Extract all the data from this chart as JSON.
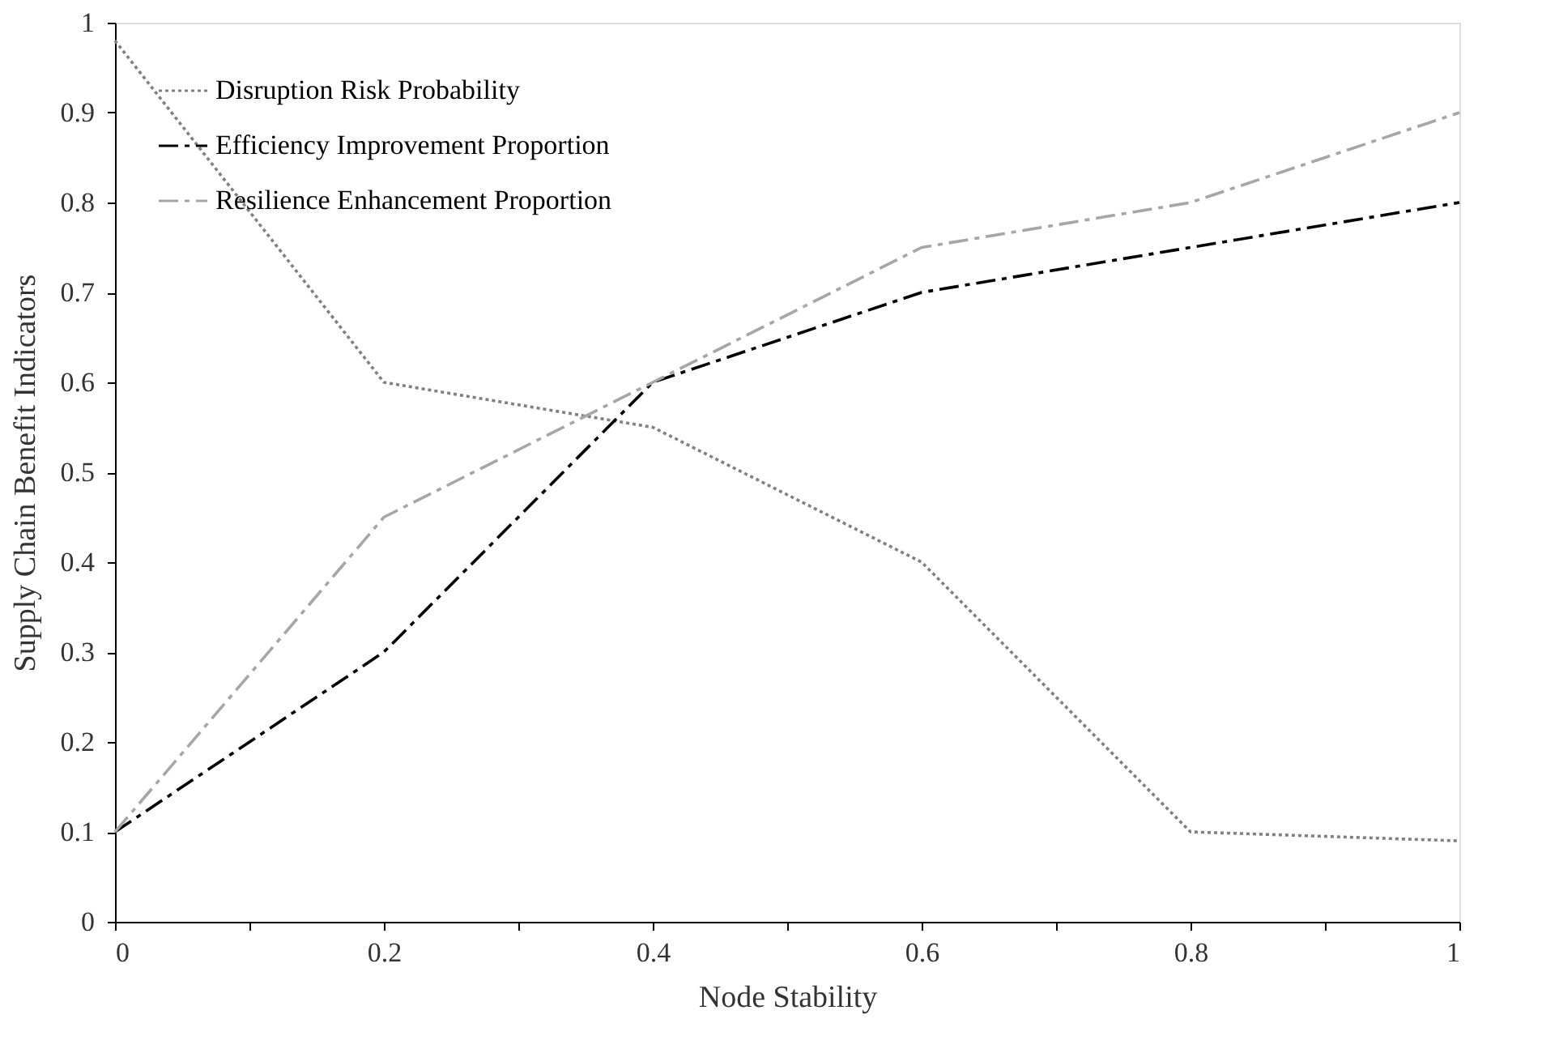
{
  "chart_data": {
    "type": "line",
    "xlabel": "Node Stability",
    "ylabel": "Supply Chain Benefit Indicators",
    "x": [
      0,
      0.2,
      0.4,
      0.6,
      0.8,
      1
    ],
    "series": [
      {
        "name": "Disruption Risk Probability",
        "color": "#808080",
        "line_style": "dotted",
        "values": [
          0.98,
          0.6,
          0.55,
          0.4,
          0.1,
          0.09
        ]
      },
      {
        "name": "Efficiency Improvement Proportion",
        "color": "#000000",
        "line_style": "dashed",
        "values": [
          0.1,
          0.3,
          0.6,
          0.7,
          0.75,
          0.8
        ]
      },
      {
        "name": "Resilience Enhancement Proportion",
        "color": "#a6a6a6",
        "line_style": "dashed",
        "values": [
          0.1,
          0.45,
          0.6,
          0.75,
          0.8,
          0.9
        ]
      }
    ],
    "xlim": [
      0,
      1
    ],
    "xticks": [
      0,
      {
        "value": 0.1,
        "label": null
      },
      0.2,
      {
        "value": 0.3,
        "label": null
      },
      0.4,
      {
        "value": 0.5,
        "label": null
      },
      0.6,
      {
        "value": 0.7,
        "label": null
      },
      0.8,
      {
        "value": 0.9,
        "label": null
      },
      1
    ],
    "ylim": [
      0,
      1
    ],
    "yticks": [
      0,
      0.1,
      0.2,
      0.3,
      0.4,
      0.5,
      0.6,
      0.7,
      0.8,
      0.9,
      1
    ],
    "grid": false,
    "legend": "top left",
    "marker": "none"
  }
}
